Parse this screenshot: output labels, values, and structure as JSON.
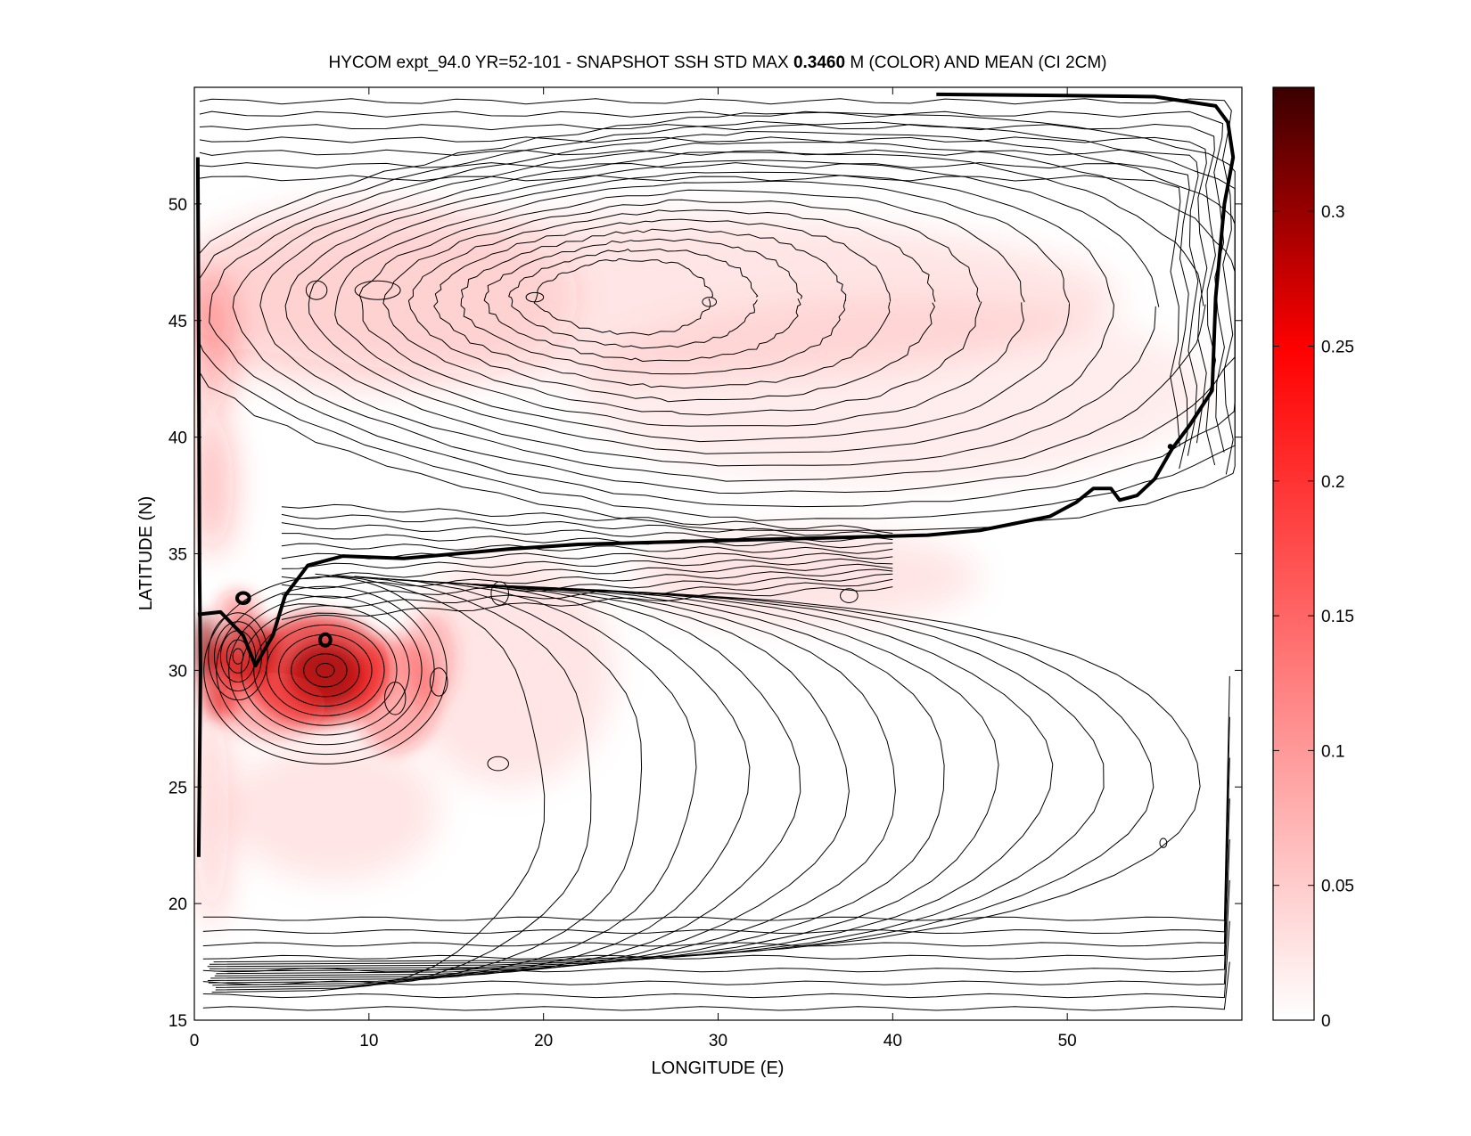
{
  "chart_data": {
    "type": "heatmap",
    "title_prefix": "HYCOM expt_94.0 YR=52-101 - SNAPSHOT SSH STD MAX ",
    "title_value": "0.3460",
    "title_suffix": " M (COLOR) AND MEAN (CI 2CM)",
    "xlabel": "LONGITUDE (E)",
    "ylabel": "LATITUDE (N)",
    "xlim": [
      0,
      60
    ],
    "ylim": [
      15,
      55
    ],
    "x_ticks": [
      0,
      10,
      20,
      30,
      40,
      50
    ],
    "x_tick_labels": [
      "0",
      "10",
      "20",
      "30",
      "40",
      "50"
    ],
    "y_ticks": [
      15,
      20,
      25,
      30,
      35,
      40,
      45,
      50
    ],
    "y_tick_labels": [
      "15",
      "20",
      "25",
      "30",
      "35",
      "40",
      "45",
      "50"
    ],
    "colorbar": {
      "range": [
        0,
        0.346
      ],
      "ticks": [
        0,
        0.05,
        0.1,
        0.15,
        0.2,
        0.25,
        0.3
      ],
      "tick_labels": [
        "0",
        "0.05",
        "0.1",
        "0.15",
        "0.2",
        "0.25",
        "0.3"
      ],
      "colors": [
        "#ffffff",
        "#ff0000",
        "#3a0000"
      ]
    },
    "color_max_m": 0.346,
    "contour_interval_cm": 2,
    "grid": false,
    "high_variability_region": {
      "lon": [
        0,
        14
      ],
      "lat": [
        26,
        35
      ]
    },
    "zero_contour_path": [
      [
        0.2,
        32.4
      ],
      [
        1.5,
        32.5
      ],
      [
        2.8,
        31.5
      ],
      [
        3.5,
        30.2
      ],
      [
        4.5,
        31.5
      ],
      [
        5.2,
        33.2
      ],
      [
        6.5,
        34.5
      ],
      [
        8.5,
        34.9
      ],
      [
        12,
        34.8
      ],
      [
        15,
        35.0
      ],
      [
        18,
        35.2
      ],
      [
        22,
        35.4
      ],
      [
        27,
        35.5
      ],
      [
        32,
        35.6
      ],
      [
        37,
        35.7
      ],
      [
        42,
        35.8
      ],
      [
        45,
        36.0
      ],
      [
        47,
        36.3
      ],
      [
        49,
        36.6
      ],
      [
        50.5,
        37.2
      ],
      [
        51.5,
        37.8
      ],
      [
        52.5,
        37.8
      ],
      [
        53,
        37.3
      ],
      [
        54,
        37.5
      ],
      [
        55,
        38.2
      ],
      [
        56,
        39.5
      ],
      [
        57,
        40.5
      ],
      [
        58.3,
        42
      ],
      [
        58.5,
        46
      ],
      [
        59.0,
        50
      ],
      [
        59.5,
        52
      ],
      [
        59.2,
        53.5
      ],
      [
        58.5,
        54.2
      ],
      [
        55,
        54.6
      ],
      [
        50,
        54.65
      ],
      [
        42.5,
        54.7
      ]
    ]
  }
}
